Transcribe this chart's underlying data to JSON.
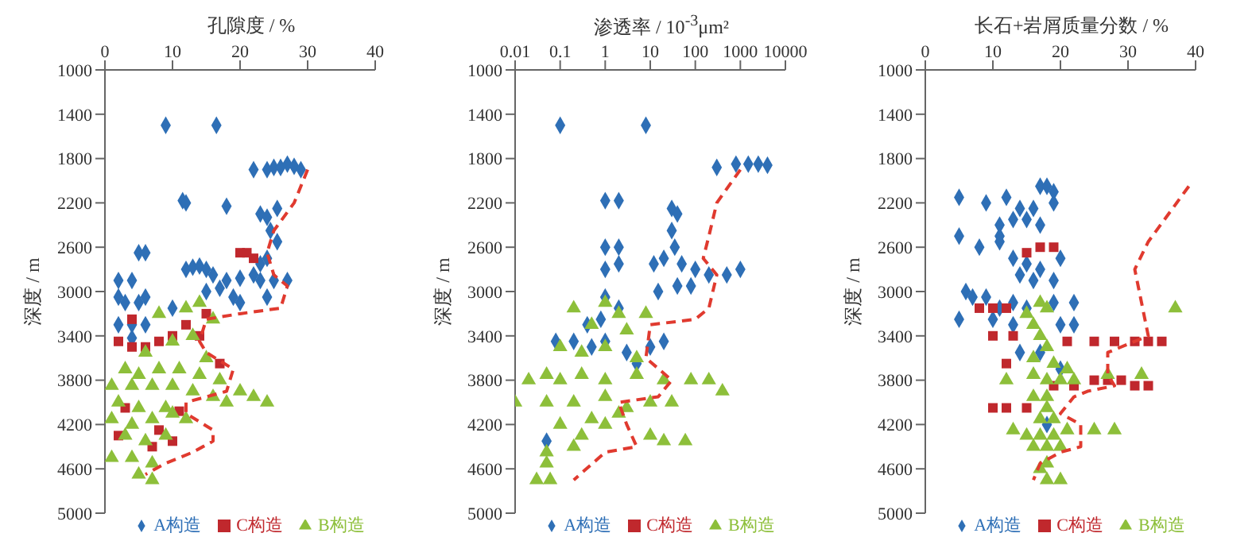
{
  "chart_data": [
    {
      "type": "scatter",
      "xlabel": "孔隙度 / %",
      "ylabel": "深度 / m",
      "xlim": [
        0,
        40
      ],
      "xticks": [
        0,
        10,
        20,
        30,
        40
      ],
      "ylim": [
        5000,
        1000
      ],
      "yticks": [
        1000,
        1400,
        1800,
        2200,
        2600,
        3000,
        3400,
        3800,
        4200,
        4600,
        5000
      ],
      "legend": "bottom",
      "series": [
        {
          "name": "A构造",
          "color": "#2e6fb6",
          "marker": "diamond",
          "x": [
            9,
            16.5,
            22,
            24,
            25,
            26,
            27,
            28,
            29,
            11.5,
            12,
            18,
            23,
            24,
            25.5,
            24.5,
            25.5,
            24,
            23,
            5,
            6,
            2,
            4,
            12,
            13,
            14,
            15,
            16,
            18,
            20,
            22,
            23,
            25,
            27,
            15,
            17,
            19,
            20,
            24,
            2,
            3,
            5,
            6,
            10,
            2,
            4,
            6,
            4
          ],
          "values": [
            1500,
            1500,
            1900,
            1900,
            1880,
            1880,
            1850,
            1870,
            1900,
            2180,
            2200,
            2230,
            2300,
            2330,
            2250,
            2450,
            2550,
            2700,
            2750,
            2650,
            2650,
            2900,
            2900,
            2800,
            2780,
            2770,
            2800,
            2850,
            2900,
            2880,
            2850,
            2900,
            2900,
            2900,
            3000,
            2970,
            3050,
            3100,
            3050,
            3050,
            3100,
            3100,
            3050,
            3150,
            3300,
            3300,
            3300,
            3420
          ]
        },
        {
          "name": "C构造",
          "color": "#c0282d",
          "marker": "square",
          "x": [
            20,
            22,
            21,
            4,
            15,
            2,
            4,
            6,
            8,
            10,
            12,
            14,
            17,
            3,
            11,
            2,
            10,
            8,
            7
          ],
          "values": [
            2650,
            2700,
            2650,
            3250,
            3200,
            3450,
            3500,
            3500,
            3450,
            3400,
            3300,
            3400,
            3650,
            4050,
            4080,
            4300,
            4350,
            4250,
            4400
          ]
        },
        {
          "name": "B构造",
          "color": "#8dbf3a",
          "marker": "triangle",
          "x": [
            8,
            12,
            14,
            16,
            13,
            10,
            6,
            15,
            3,
            5,
            8,
            11,
            14,
            17,
            1,
            4,
            7,
            10,
            13,
            16,
            20,
            22,
            24,
            18,
            2,
            5,
            9,
            1,
            4,
            7,
            10,
            12,
            3,
            6,
            9,
            1,
            4,
            7,
            5,
            7
          ],
          "values": [
            3200,
            3150,
            3100,
            3250,
            3400,
            3450,
            3550,
            3600,
            3700,
            3750,
            3700,
            3700,
            3750,
            3800,
            3850,
            3850,
            3850,
            3850,
            3900,
            3950,
            3900,
            3950,
            4000,
            4000,
            4000,
            4050,
            4050,
            4150,
            4200,
            4150,
            4100,
            4150,
            4300,
            4350,
            4300,
            4500,
            4500,
            4550,
            4650,
            4700
          ]
        },
        {
          "type": "line",
          "color": "#e03a2f",
          "line_style": "dashed",
          "marker": "none",
          "x": [
            30,
            28,
            25,
            24,
            25,
            27,
            26,
            20,
            15,
            14,
            15,
            19,
            18,
            12,
            12,
            16,
            16,
            13,
            9,
            6
          ],
          "values": [
            1900,
            2200,
            2450,
            2650,
            2850,
            2950,
            3150,
            3200,
            3250,
            3450,
            3550,
            3700,
            3900,
            4000,
            4100,
            4250,
            4350,
            4450,
            4550,
            4650
          ]
        }
      ]
    },
    {
      "type": "scatter",
      "xlabel": "渗透率 / 10$^{-3}$μm²",
      "ylabel": "深度 / m",
      "log": "x",
      "xlim": [
        0.01,
        10000
      ],
      "xticks": [
        0.01,
        0.1,
        1,
        10,
        100,
        1000,
        10000
      ],
      "ylim": [
        5000,
        1000
      ],
      "yticks": [
        1000,
        1400,
        1800,
        2200,
        2600,
        3000,
        3400,
        3800,
        4200,
        4600,
        5000
      ],
      "legend": "bottom",
      "series": [
        {
          "name": "A构造",
          "color": "#2e6fb6",
          "marker": "diamond",
          "x": [
            0.1,
            8,
            300,
            800,
            1500,
            2500,
            4000,
            1,
            2,
            30,
            40,
            30,
            35,
            1,
            2,
            1,
            2,
            12,
            20,
            50,
            100,
            200,
            500,
            1000,
            15,
            40,
            80,
            1,
            2,
            0.4,
            0.8,
            0.08,
            0.2,
            0.5,
            1,
            3,
            10,
            20,
            5,
            0.05
          ],
          "values": [
            1500,
            1500,
            1880,
            1850,
            1850,
            1850,
            1860,
            2180,
            2180,
            2250,
            2300,
            2450,
            2600,
            2600,
            2600,
            2800,
            2750,
            2750,
            2700,
            2750,
            2800,
            2850,
            2850,
            2800,
            3000,
            2950,
            2950,
            3050,
            3150,
            3300,
            3250,
            3450,
            3450,
            3500,
            3450,
            3550,
            3500,
            3450,
            3650,
            4350
          ]
        },
        {
          "name": "C构造",
          "color": "#c0282d",
          "marker": "square"
        },
        {
          "name": "B构造",
          "color": "#8dbf3a",
          "marker": "triangle",
          "x": [
            0.2,
            1,
            2,
            8,
            0.5,
            3,
            0.1,
            0.3,
            1,
            5,
            0.02,
            0.05,
            0.1,
            0.3,
            1,
            5,
            20,
            80,
            200,
            400,
            0.01,
            0.05,
            0.2,
            1,
            3,
            10,
            30,
            0.1,
            0.5,
            2,
            10,
            20,
            60,
            0.05,
            0.2,
            0.05,
            0.03,
            0.06,
            1,
            0.3
          ],
          "values": [
            3150,
            3100,
            3200,
            3200,
            3300,
            3350,
            3500,
            3550,
            3500,
            3600,
            3800,
            3750,
            3800,
            3750,
            3800,
            3750,
            3800,
            3800,
            3800,
            3900,
            4000,
            4000,
            4000,
            3950,
            4050,
            4000,
            4000,
            4200,
            4150,
            4100,
            4300,
            4350,
            4350,
            4450,
            4400,
            4550,
            4700,
            4700,
            4200,
            4300
          ]
        },
        {
          "type": "line",
          "color": "#e03a2f",
          "line_style": "dashed",
          "marker": "none",
          "x": [
            1000,
            300,
            200,
            150,
            300,
            200,
            100,
            10,
            8,
            30,
            15,
            2,
            3,
            5,
            1,
            0.2
          ],
          "values": [
            1900,
            2200,
            2500,
            2700,
            2850,
            3150,
            3250,
            3300,
            3600,
            3800,
            3950,
            4000,
            4200,
            4400,
            4450,
            4700
          ]
        }
      ]
    },
    {
      "type": "scatter",
      "xlabel": "长石+岩屑质量分数 / %",
      "ylabel": "深度 / m",
      "xlim": [
        0,
        40
      ],
      "xticks": [
        0,
        10,
        20,
        30,
        40
      ],
      "ylim": [
        5000,
        1000
      ],
      "yticks": [
        1000,
        1400,
        1800,
        2200,
        2600,
        3000,
        3400,
        3800,
        4200,
        4600,
        5000
      ],
      "legend": "bottom",
      "series": [
        {
          "name": "A构造",
          "color": "#2e6fb6",
          "marker": "diamond",
          "x": [
            17,
            18,
            19,
            5,
            9,
            12,
            14,
            16,
            19,
            11,
            13,
            15,
            17,
            11,
            5,
            8,
            11,
            13,
            15,
            17,
            20,
            14,
            16,
            19,
            6,
            7,
            9,
            11,
            13,
            15,
            19,
            22,
            5,
            10,
            13,
            20,
            22,
            14,
            17,
            18,
            20
          ],
          "values": [
            2050,
            2050,
            2100,
            2150,
            2200,
            2150,
            2250,
            2250,
            2200,
            2400,
            2350,
            2350,
            2400,
            2500,
            2500,
            2600,
            2550,
            2700,
            2750,
            2800,
            2700,
            2850,
            2900,
            2900,
            3000,
            3050,
            3050,
            3150,
            3100,
            3150,
            3100,
            3100,
            3250,
            3250,
            3300,
            3300,
            3300,
            3550,
            3550,
            4200,
            3700
          ]
        },
        {
          "name": "C构造",
          "color": "#c0282d",
          "marker": "square",
          "x": [
            15,
            17,
            19,
            8,
            10,
            12,
            10,
            13,
            21,
            25,
            28,
            31,
            33,
            35,
            12,
            19,
            22,
            25,
            27,
            29,
            31,
            33,
            10,
            12,
            15
          ],
          "values": [
            2650,
            2600,
            2600,
            3150,
            3150,
            3150,
            3400,
            3400,
            3450,
            3450,
            3450,
            3450,
            3450,
            3450,
            3650,
            3850,
            3850,
            3800,
            3800,
            3800,
            3850,
            3850,
            4050,
            4050,
            4050
          ]
        },
        {
          "name": "B构造",
          "color": "#8dbf3a",
          "marker": "triangle",
          "x": [
            18,
            17,
            15,
            16,
            17,
            18,
            16,
            19,
            21,
            16,
            18,
            20,
            22,
            12,
            27,
            32,
            37,
            16,
            18,
            18,
            17,
            19,
            13,
            15,
            17,
            19,
            21,
            25,
            28,
            16,
            18,
            20,
            18,
            17,
            18,
            20
          ],
          "values": [
            3150,
            3100,
            3200,
            3300,
            3400,
            3500,
            3600,
            3650,
            3700,
            3750,
            3800,
            3800,
            3800,
            3800,
            3750,
            3750,
            3150,
            3950,
            3950,
            4050,
            4150,
            4150,
            4250,
            4300,
            4300,
            4300,
            4250,
            4250,
            4250,
            4400,
            4400,
            4400,
            4550,
            4600,
            4700,
            4700
          ]
        },
        {
          "type": "line",
          "color": "#e03a2f",
          "line_style": "dashed",
          "marker": "none",
          "x": [
            39,
            33,
            31,
            32,
            33,
            27,
            27,
            28,
            24,
            22,
            20,
            23,
            23,
            20,
            17,
            16
          ],
          "values": [
            2050,
            2550,
            2800,
            3100,
            3400,
            3550,
            3750,
            3850,
            3900,
            3950,
            4100,
            4200,
            4400,
            4450,
            4550,
            4700
          ]
        }
      ]
    }
  ]
}
